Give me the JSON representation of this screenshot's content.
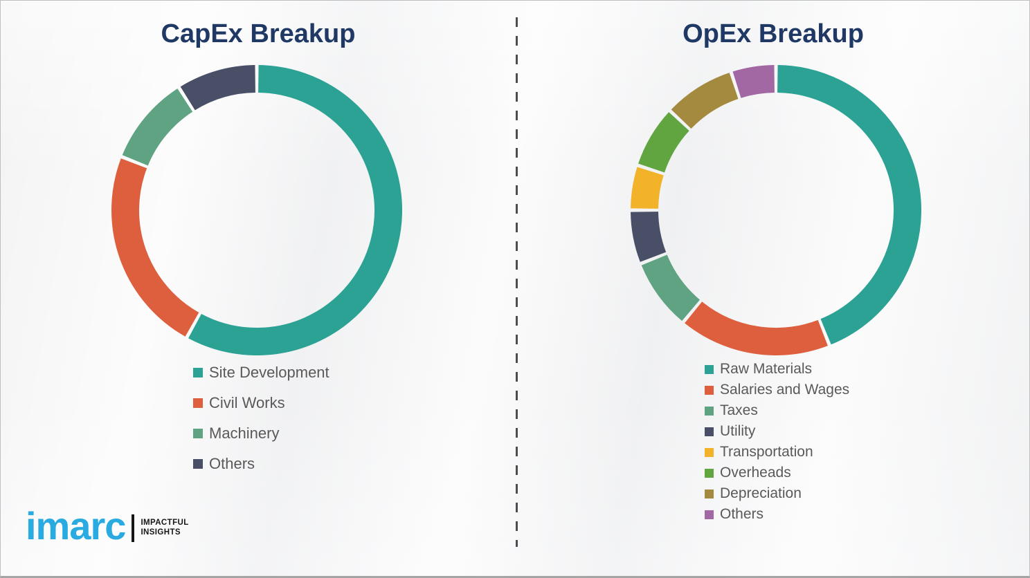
{
  "chart_data": [
    {
      "type": "pie",
      "subtype": "donut",
      "title": "CapEx Breakup",
      "labels": [
        "Site Development",
        "Civil Works",
        "Machinery",
        "Others"
      ],
      "values": [
        58,
        23,
        10,
        9
      ],
      "unit": "percent",
      "colors": [
        "#2ba294",
        "#dd5f3e",
        "#5fa383",
        "#484f67"
      ],
      "start_angle_deg": 0,
      "direction": "clockwise",
      "legend_position": "below-left",
      "data_labels": "none"
    },
    {
      "type": "pie",
      "subtype": "donut",
      "title": "OpEx Breakup",
      "labels": [
        "Raw Materials",
        "Salaries and Wages",
        "Taxes",
        "Utility",
        "Transportation",
        "Overheads",
        "Depreciation",
        "Others"
      ],
      "values": [
        44,
        17,
        8,
        6,
        5,
        7,
        8,
        5
      ],
      "unit": "percent",
      "colors": [
        "#2ba294",
        "#dd5f3e",
        "#5fa383",
        "#484f67",
        "#f2b32a",
        "#60a53f",
        "#a48a3e",
        "#a268a4"
      ],
      "start_angle_deg": 0,
      "direction": "clockwise",
      "legend_position": "below-left",
      "data_labels": "none"
    }
  ],
  "logo": {
    "brand": "imarc",
    "brand_color": "#29abe2",
    "tagline": [
      "IMPACTFUL",
      "INSIGHTS"
    ]
  },
  "theme": {
    "title_color": "#1f3864",
    "legend_text_color": "#595959"
  }
}
